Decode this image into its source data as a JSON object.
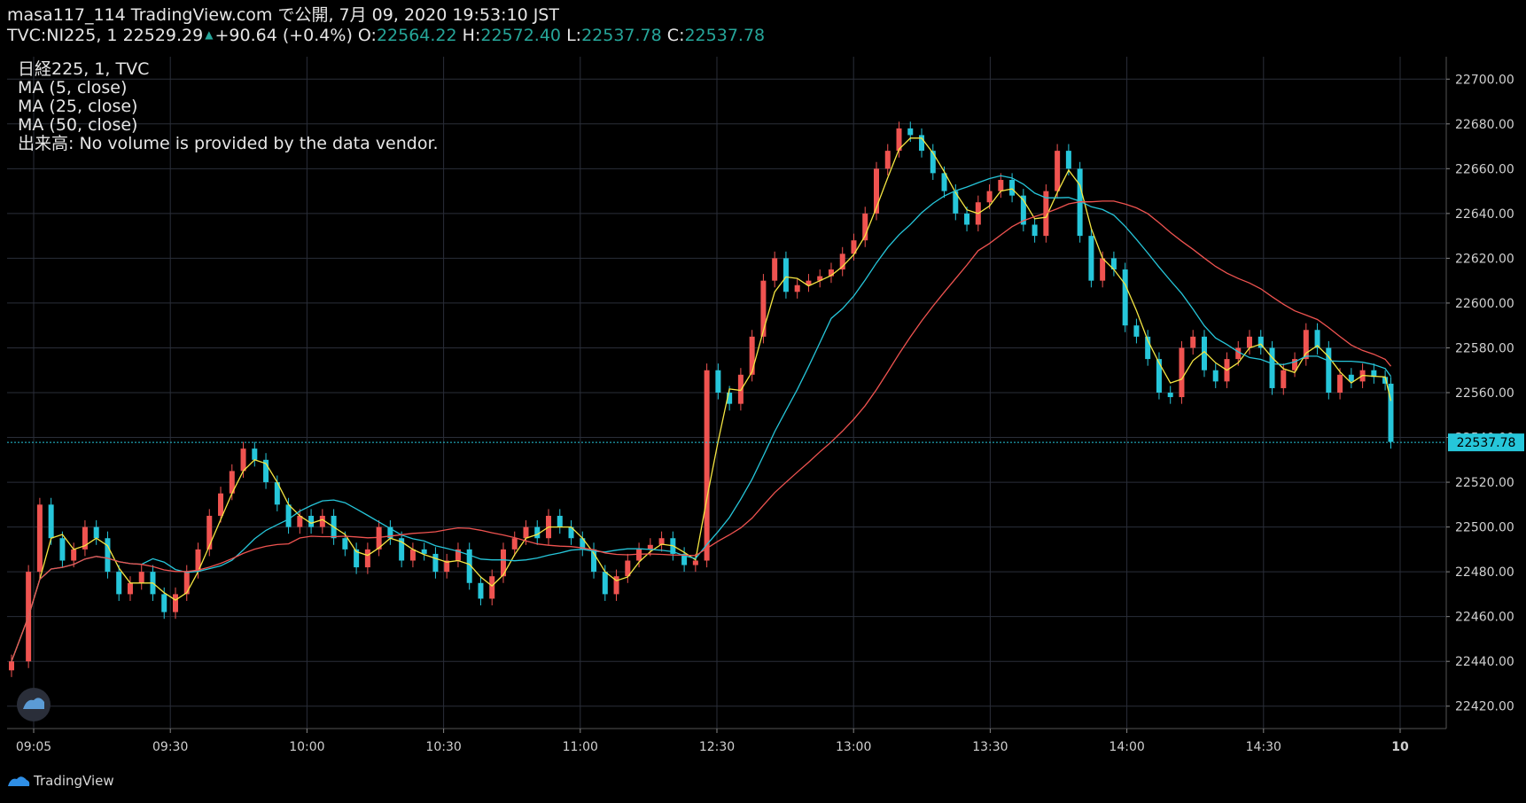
{
  "header": {
    "line1": "masa117_114 TradingView.com で公開, 7月 09, 2020 19:53:10 JST",
    "symbol": "TVC:NI225, 1",
    "last": "22529.29",
    "change": "+90.64 (+0.4%)",
    "o_label": "O:",
    "o_val": "22564.22",
    "h_label": "H:",
    "h_val": "22572.40",
    "l_label": "L:",
    "l_val": "22537.78",
    "c_label": "C:",
    "c_val": "22537.78"
  },
  "legend": {
    "line1": "日経225, 1, TVC",
    "ma5": "MA (5, close)",
    "ma25": "MA (25, close)",
    "ma50": "MA (50, close)",
    "volume": "出来高: No volume is provided by the data vendor."
  },
  "footer": {
    "brand": "TradingView"
  },
  "colors": {
    "background": "#000000",
    "grid": "#2a2e39",
    "up": "#ef5350",
    "down": "#26c6da",
    "ma5": "#f5e642",
    "ma25": "#26c6da",
    "ma50": "#ef5350",
    "last_price_label": "#26c6da"
  },
  "chart_data": {
    "type": "candlestick",
    "ylim": [
      22410,
      22710
    ],
    "y_ticks": [
      "22700.00",
      "22680.00",
      "22660.00",
      "22640.00",
      "22620.00",
      "22600.00",
      "22580.00",
      "22560.00",
      "22540.00",
      "22520.00",
      "22500.00",
      "22480.00",
      "22460.00",
      "22440.00",
      "22420.00"
    ],
    "x_ticks": [
      "09:05",
      "09:30",
      "10:00",
      "10:30",
      "11:00",
      "12:30",
      "13:00",
      "13:30",
      "14:00",
      "14:30",
      "10"
    ],
    "last_price_label": "22537.78",
    "closes": [
      {
        "t": 0,
        "c": 22440
      },
      {
        "t": 3,
        "c": 22480
      },
      {
        "t": 5,
        "c": 22510
      },
      {
        "t": 7,
        "c": 22495
      },
      {
        "t": 9,
        "c": 22485
      },
      {
        "t": 11,
        "c": 22490
      },
      {
        "t": 13,
        "c": 22500
      },
      {
        "t": 15,
        "c": 22495
      },
      {
        "t": 17,
        "c": 22480
      },
      {
        "t": 19,
        "c": 22470
      },
      {
        "t": 21,
        "c": 22475
      },
      {
        "t": 23,
        "c": 22480
      },
      {
        "t": 25,
        "c": 22470
      },
      {
        "t": 27,
        "c": 22462
      },
      {
        "t": 29,
        "c": 22470
      },
      {
        "t": 31,
        "c": 22480
      },
      {
        "t": 33,
        "c": 22490
      },
      {
        "t": 35,
        "c": 22505
      },
      {
        "t": 37,
        "c": 22515
      },
      {
        "t": 39,
        "c": 22525
      },
      {
        "t": 41,
        "c": 22535
      },
      {
        "t": 43,
        "c": 22530
      },
      {
        "t": 45,
        "c": 22520
      },
      {
        "t": 47,
        "c": 22510
      },
      {
        "t": 49,
        "c": 22500
      },
      {
        "t": 51,
        "c": 22505
      },
      {
        "t": 53,
        "c": 22500
      },
      {
        "t": 55,
        "c": 22505
      },
      {
        "t": 57,
        "c": 22495
      },
      {
        "t": 59,
        "c": 22490
      },
      {
        "t": 61,
        "c": 22482
      },
      {
        "t": 63,
        "c": 22490
      },
      {
        "t": 65,
        "c": 22500
      },
      {
        "t": 67,
        "c": 22495
      },
      {
        "t": 69,
        "c": 22485
      },
      {
        "t": 71,
        "c": 22490
      },
      {
        "t": 73,
        "c": 22488
      },
      {
        "t": 75,
        "c": 22480
      },
      {
        "t": 77,
        "c": 22485
      },
      {
        "t": 79,
        "c": 22490
      },
      {
        "t": 81,
        "c": 22475
      },
      {
        "t": 83,
        "c": 22468
      },
      {
        "t": 85,
        "c": 22478
      },
      {
        "t": 87,
        "c": 22490
      },
      {
        "t": 89,
        "c": 22495
      },
      {
        "t": 91,
        "c": 22500
      },
      {
        "t": 93,
        "c": 22495
      },
      {
        "t": 95,
        "c": 22505
      },
      {
        "t": 97,
        "c": 22500
      },
      {
        "t": 99,
        "c": 22495
      },
      {
        "t": 101,
        "c": 22490
      },
      {
        "t": 103,
        "c": 22480
      },
      {
        "t": 105,
        "c": 22470
      },
      {
        "t": 107,
        "c": 22478
      },
      {
        "t": 109,
        "c": 22485
      },
      {
        "t": 111,
        "c": 22490
      },
      {
        "t": 113,
        "c": 22492
      },
      {
        "t": 115,
        "c": 22495
      },
      {
        "t": 117,
        "c": 22488
      },
      {
        "t": 119,
        "c": 22483
      },
      {
        "t": 121,
        "c": 22485
      },
      {
        "t": 123,
        "c": 22570
      },
      {
        "t": 125,
        "c": 22560
      },
      {
        "t": 127,
        "c": 22555
      },
      {
        "t": 129,
        "c": 22568
      },
      {
        "t": 131,
        "c": 22585
      },
      {
        "t": 133,
        "c": 22610
      },
      {
        "t": 135,
        "c": 22620
      },
      {
        "t": 137,
        "c": 22605
      },
      {
        "t": 139,
        "c": 22608
      },
      {
        "t": 141,
        "c": 22610
      },
      {
        "t": 143,
        "c": 22612
      },
      {
        "t": 145,
        "c": 22615
      },
      {
        "t": 147,
        "c": 22622
      },
      {
        "t": 149,
        "c": 22628
      },
      {
        "t": 151,
        "c": 22640
      },
      {
        "t": 153,
        "c": 22660
      },
      {
        "t": 155,
        "c": 22668
      },
      {
        "t": 157,
        "c": 22678
      },
      {
        "t": 159,
        "c": 22675
      },
      {
        "t": 161,
        "c": 22668
      },
      {
        "t": 163,
        "c": 22658
      },
      {
        "t": 165,
        "c": 22650
      },
      {
        "t": 167,
        "c": 22640
      },
      {
        "t": 169,
        "c": 22635
      },
      {
        "t": 171,
        "c": 22645
      },
      {
        "t": 173,
        "c": 22650
      },
      {
        "t": 175,
        "c": 22655
      },
      {
        "t": 177,
        "c": 22648
      },
      {
        "t": 179,
        "c": 22635
      },
      {
        "t": 181,
        "c": 22630
      },
      {
        "t": 183,
        "c": 22650
      },
      {
        "t": 185,
        "c": 22668
      },
      {
        "t": 187,
        "c": 22660
      },
      {
        "t": 189,
        "c": 22630
      },
      {
        "t": 191,
        "c": 22610
      },
      {
        "t": 193,
        "c": 22620
      },
      {
        "t": 195,
        "c": 22615
      },
      {
        "t": 197,
        "c": 22590
      },
      {
        "t": 199,
        "c": 22585
      },
      {
        "t": 201,
        "c": 22575
      },
      {
        "t": 203,
        "c": 22560
      },
      {
        "t": 205,
        "c": 22558
      },
      {
        "t": 207,
        "c": 22580
      },
      {
        "t": 209,
        "c": 22585
      },
      {
        "t": 211,
        "c": 22570
      },
      {
        "t": 213,
        "c": 22565
      },
      {
        "t": 215,
        "c": 22575
      },
      {
        "t": 217,
        "c": 22580
      },
      {
        "t": 219,
        "c": 22585
      },
      {
        "t": 221,
        "c": 22580
      },
      {
        "t": 223,
        "c": 22562
      },
      {
        "t": 225,
        "c": 22570
      },
      {
        "t": 227,
        "c": 22575
      },
      {
        "t": 229,
        "c": 22588
      },
      {
        "t": 231,
        "c": 22580
      },
      {
        "t": 233,
        "c": 22560
      },
      {
        "t": 235,
        "c": 22568
      },
      {
        "t": 237,
        "c": 22565
      },
      {
        "t": 239,
        "c": 22570
      },
      {
        "t": 241,
        "c": 22567
      },
      {
        "t": 243,
        "c": 22564
      },
      {
        "t": 244,
        "c": 22538
      }
    ]
  }
}
